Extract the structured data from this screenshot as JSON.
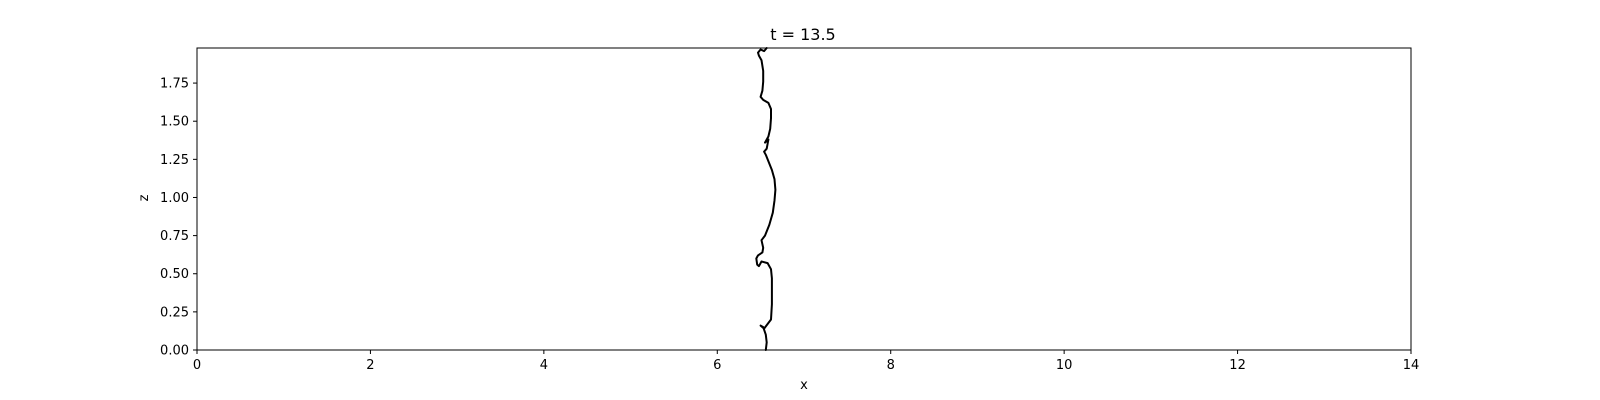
{
  "chart_data": {
    "type": "line",
    "title": "t = 13.5",
    "xlabel": "x",
    "ylabel": "z",
    "xlim": [
      0,
      14
    ],
    "ylim": [
      0,
      1.98
    ],
    "xticks": [
      "0",
      "2",
      "4",
      "6",
      "8",
      "10",
      "12",
      "14"
    ],
    "yticks": [
      "0.00",
      "0.25",
      "0.50",
      "0.75",
      "1.00",
      "1.25",
      "1.50",
      "1.75"
    ],
    "grid": false,
    "legend": "none",
    "series": [
      {
        "color": "#000000",
        "x": [
          6.56,
          6.57,
          6.56,
          6.53,
          6.5,
          6.54,
          6.62,
          6.63,
          6.63,
          6.63,
          6.62,
          6.58,
          6.51,
          6.48,
          6.46,
          6.45,
          6.47,
          6.52,
          6.53,
          6.51,
          6.55,
          6.6,
          6.64,
          6.66,
          6.67,
          6.66,
          6.63,
          6.56,
          6.54,
          6.57,
          6.59,
          6.55,
          6.59,
          6.61,
          6.62,
          6.62,
          6.59,
          6.53,
          6.5,
          6.52,
          6.53,
          6.53,
          6.51,
          6.48,
          6.47,
          6.5,
          6.54,
          6.57
        ],
        "y": [
          0.0,
          0.05,
          0.1,
          0.15,
          0.16,
          0.14,
          0.2,
          0.3,
          0.4,
          0.47,
          0.53,
          0.57,
          0.58,
          0.55,
          0.56,
          0.6,
          0.62,
          0.64,
          0.67,
          0.72,
          0.75,
          0.82,
          0.9,
          0.98,
          1.05,
          1.12,
          1.18,
          1.28,
          1.3,
          1.32,
          1.38,
          1.36,
          1.4,
          1.45,
          1.52,
          1.58,
          1.62,
          1.64,
          1.66,
          1.7,
          1.76,
          1.83,
          1.9,
          1.93,
          1.95,
          1.97,
          1.96,
          1.98
        ]
      }
    ]
  }
}
